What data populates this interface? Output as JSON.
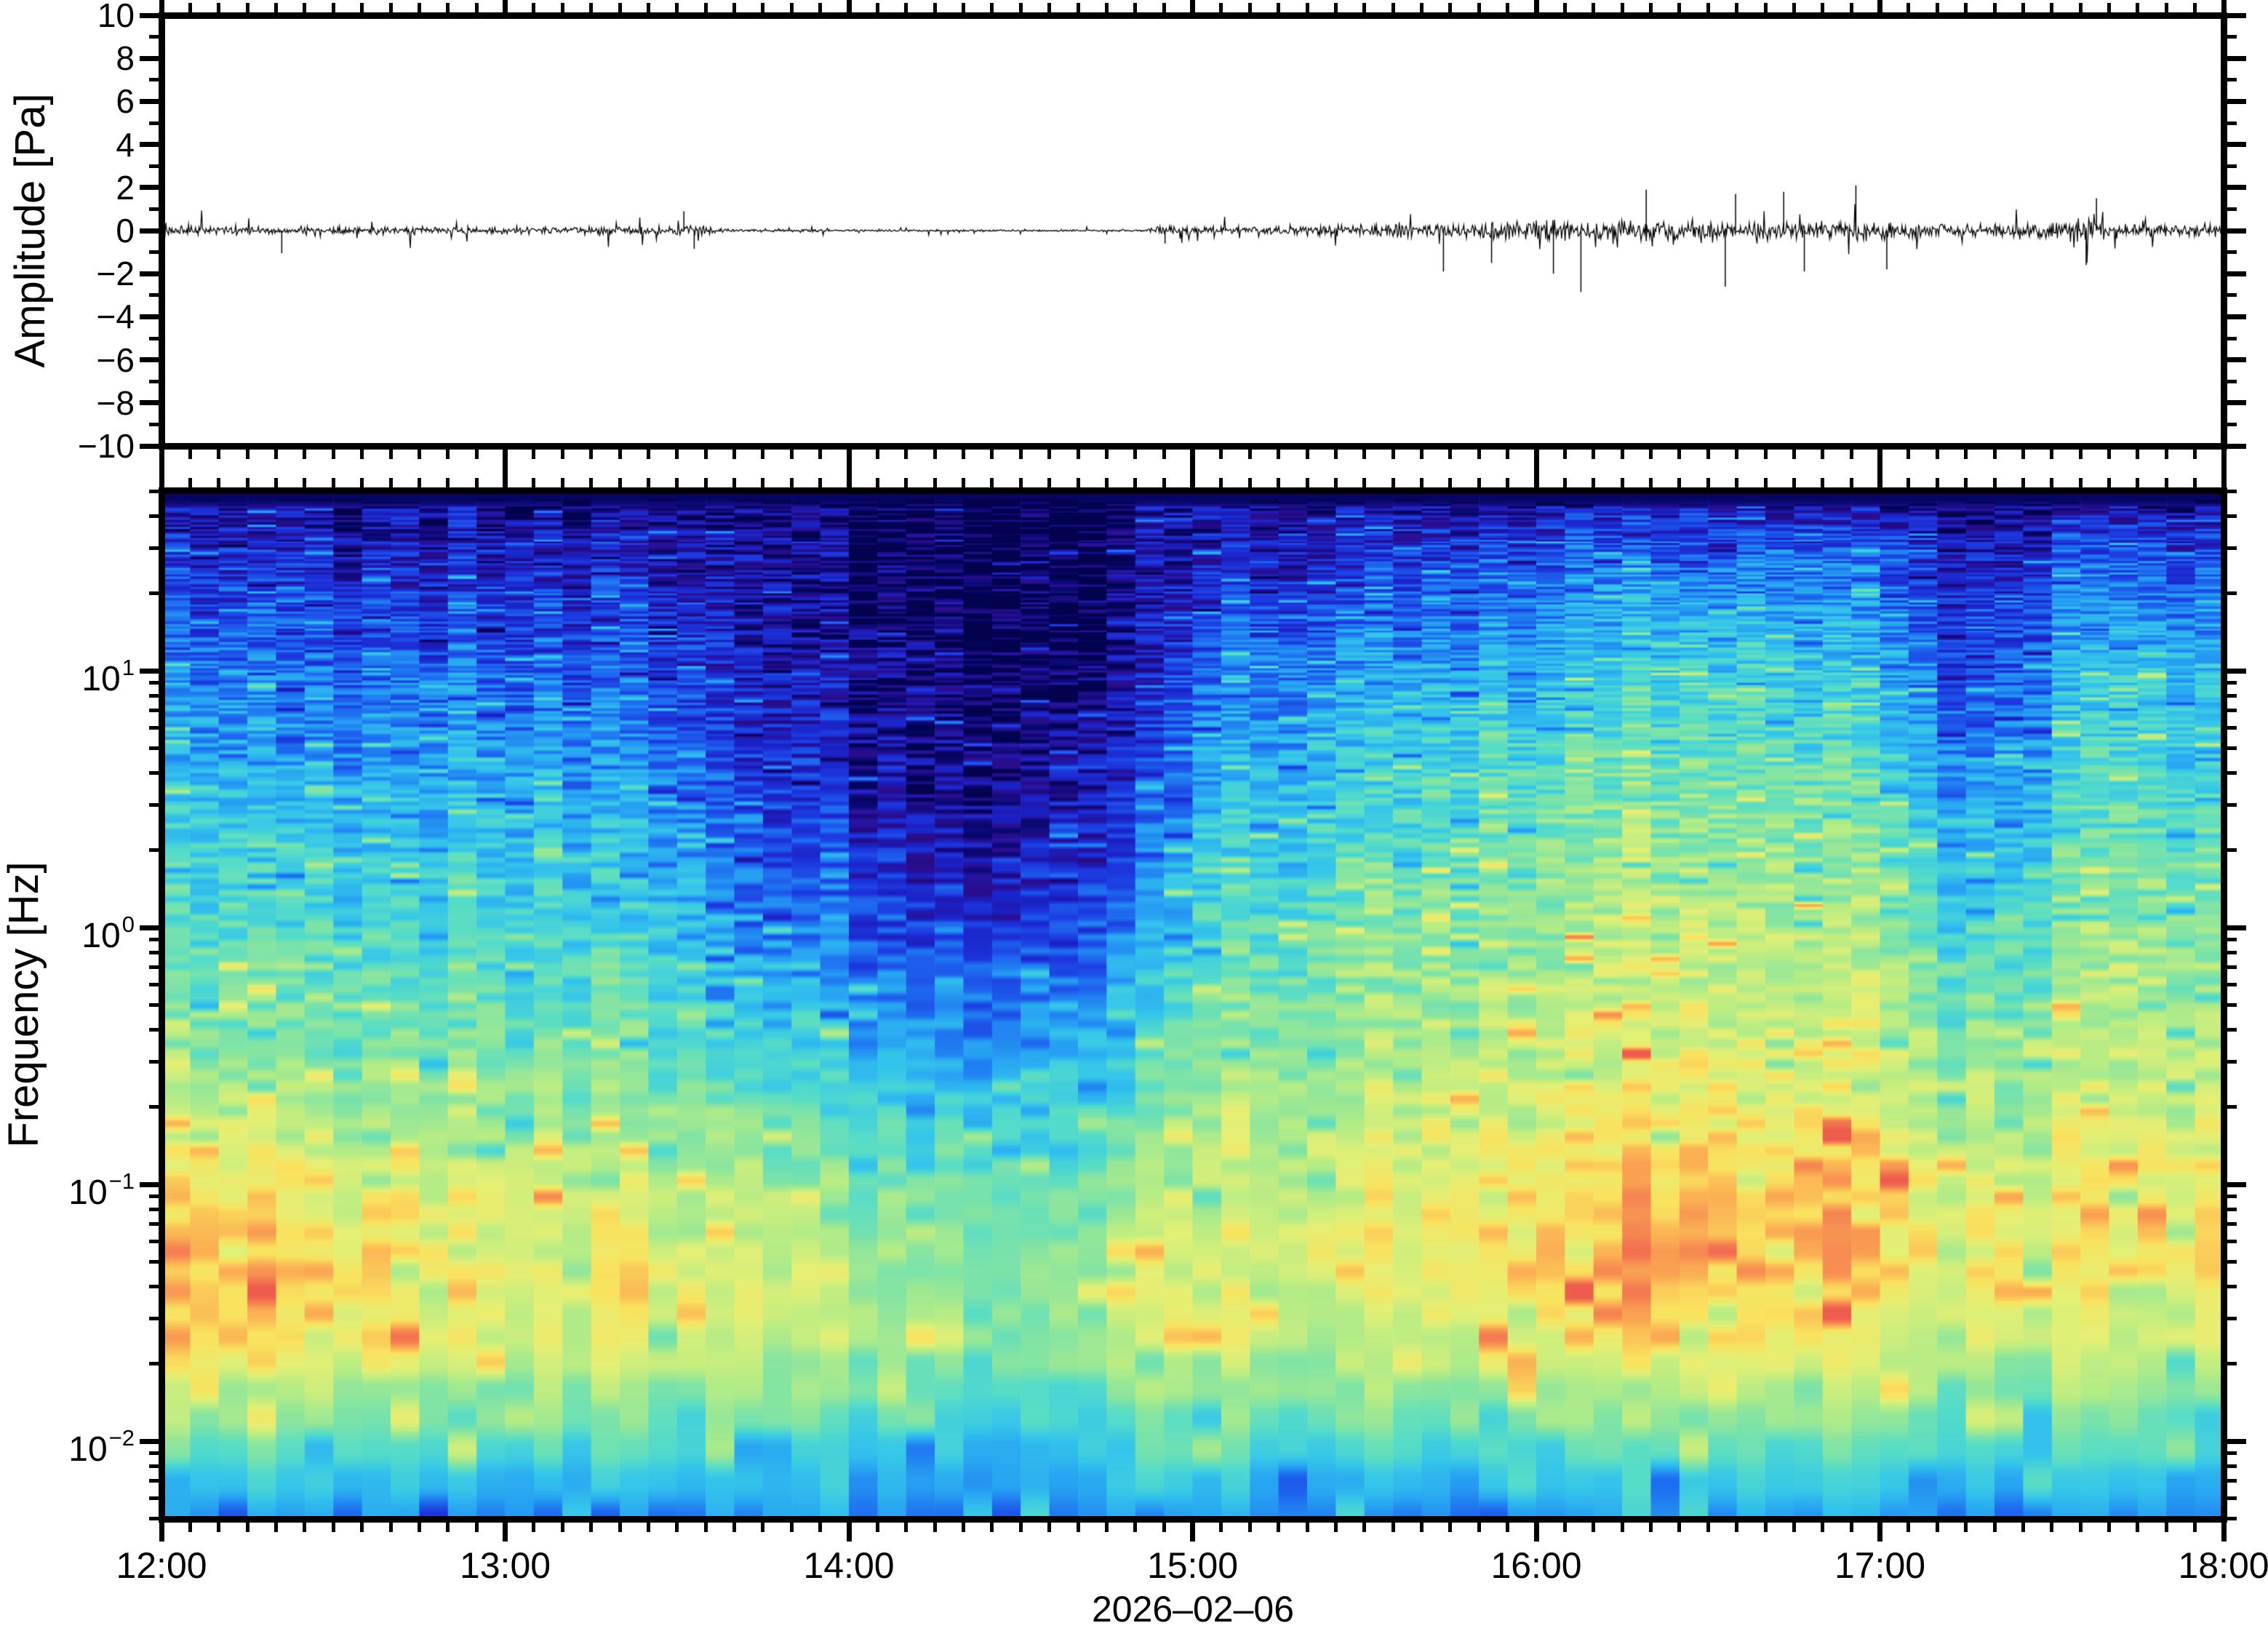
{
  "figure": {
    "background": "#ffffff",
    "frame_color": "#000000",
    "date_label": "2026–02–06"
  },
  "axes_text": {
    "amplitude_title": "Amplitude [Pa]",
    "frequency_title": "Frequency [Hz]",
    "amplitude_tick_labels": [
      "10",
      "8",
      "6",
      "4",
      "2",
      "0",
      "−2",
      "−4",
      "−6",
      "−8",
      "−10"
    ],
    "amplitude_tick_values": [
      10,
      8,
      6,
      4,
      2,
      0,
      -2,
      -4,
      -6,
      -8,
      -10
    ],
    "frequency_decade_base": "10",
    "frequency_decade_exponents": [
      "1",
      "0",
      "−1",
      "−2"
    ],
    "frequency_decade_values": [
      1,
      0,
      -1,
      -2
    ],
    "time_tick_labels": [
      "12:00",
      "13:00",
      "14:00",
      "15:00",
      "16:00",
      "17:00",
      "18:00"
    ]
  },
  "chart_data": [
    {
      "type": "line",
      "panel": "waveform",
      "ylabel": "Amplitude [Pa]",
      "ylim": [
        -10,
        10
      ],
      "ytick_step_major": 2,
      "ytick_step_minor": 1,
      "x_range_hours": [
        0,
        6
      ],
      "x_start_label": "12:00",
      "x_end_label": "18:00",
      "minor_tick_minutes": 5,
      "line_color": "#000000",
      "envelope": {
        "t_hours": [
          0,
          0.15,
          0.3,
          0.5,
          0.75,
          1.0,
          1.17,
          1.35,
          1.5,
          1.58,
          1.63,
          1.7,
          2.0,
          2.3,
          2.6,
          2.85,
          2.9,
          2.95,
          3.0,
          3.25,
          3.5,
          3.75,
          4.0,
          4.25,
          4.5,
          4.75,
          5.0,
          5.15,
          5.3,
          5.45,
          5.58,
          5.7,
          5.85,
          6.0
        ],
        "amplitude_pa": [
          0.46,
          0.4,
          0.37,
          0.33,
          0.34,
          0.33,
          0.38,
          0.34,
          0.43,
          0.45,
          0.2,
          0.11,
          0.11,
          0.085,
          0.08,
          0.09,
          0.3,
          0.35,
          0.3,
          0.45,
          0.55,
          0.68,
          0.82,
          0.92,
          0.93,
          0.88,
          0.82,
          0.62,
          0.52,
          0.66,
          0.86,
          0.78,
          0.6,
          0.52
        ]
      },
      "spikes_pa": [
        [
          0.35,
          -1.05
        ],
        [
          1.52,
          0.9
        ],
        [
          1.55,
          -0.85
        ],
        [
          2.92,
          -0.6
        ],
        [
          3.73,
          -1.9
        ],
        [
          3.87,
          -1.5
        ],
        [
          4.05,
          -2.0
        ],
        [
          4.13,
          -2.85
        ],
        [
          4.32,
          1.9
        ],
        [
          4.55,
          -2.6
        ],
        [
          4.58,
          1.7
        ],
        [
          4.72,
          1.8
        ],
        [
          4.78,
          -1.9
        ],
        [
          4.93,
          2.1
        ],
        [
          5.02,
          -1.8
        ],
        [
          5.6,
          -1.6
        ],
        [
          5.63,
          1.5
        ]
      ]
    },
    {
      "type": "heatmap",
      "panel": "spectrogram",
      "ylabel": "Frequency [Hz]",
      "y_log_scale": true,
      "freq_range_hz": [
        0.005,
        50.4
      ],
      "log10_freq_range": [
        -2.303,
        1.703
      ],
      "x_range_hours": [
        0,
        6
      ],
      "date_label": "2026–02–06",
      "column_minutes": 5,
      "time_nodes_hours": [
        0,
        0.5,
        1.0,
        1.5,
        1.67,
        2.0,
        2.33,
        2.67,
        2.92,
        3.0,
        3.5,
        4.0,
        4.5,
        5.0,
        5.25,
        5.42,
        5.67,
        6.0
      ],
      "log10_freq_nodes": [
        1.72,
        1.45,
        1.0,
        0.5,
        0.0,
        -0.5,
        -1.0,
        -1.3,
        -1.6,
        -1.9,
        -2.1,
        -2.3
      ],
      "power_grid": [
        [
          0.06,
          0.06,
          0.06,
          0.05,
          0.04,
          0.04,
          0.03,
          0.03,
          0.04,
          0.05,
          0.06,
          0.07,
          0.07,
          0.07,
          0.05,
          0.05,
          0.07,
          0.06
        ],
        [
          0.16,
          0.14,
          0.15,
          0.11,
          0.08,
          0.06,
          0.05,
          0.05,
          0.06,
          0.11,
          0.2,
          0.25,
          0.27,
          0.25,
          0.14,
          0.18,
          0.28,
          0.22
        ],
        [
          0.3,
          0.27,
          0.29,
          0.21,
          0.13,
          0.1,
          0.07,
          0.08,
          0.1,
          0.25,
          0.37,
          0.43,
          0.48,
          0.42,
          0.24,
          0.3,
          0.45,
          0.4
        ],
        [
          0.42,
          0.4,
          0.42,
          0.33,
          0.2,
          0.16,
          0.12,
          0.14,
          0.18,
          0.38,
          0.5,
          0.56,
          0.6,
          0.55,
          0.35,
          0.42,
          0.56,
          0.5
        ],
        [
          0.52,
          0.5,
          0.52,
          0.44,
          0.32,
          0.27,
          0.23,
          0.27,
          0.32,
          0.48,
          0.6,
          0.65,
          0.68,
          0.64,
          0.5,
          0.55,
          0.66,
          0.6
        ],
        [
          0.6,
          0.6,
          0.6,
          0.54,
          0.47,
          0.43,
          0.4,
          0.44,
          0.5,
          0.58,
          0.67,
          0.72,
          0.75,
          0.72,
          0.62,
          0.64,
          0.72,
          0.68
        ],
        [
          0.76,
          0.78,
          0.72,
          0.7,
          0.66,
          0.62,
          0.6,
          0.62,
          0.65,
          0.68,
          0.75,
          0.8,
          0.85,
          0.82,
          0.74,
          0.74,
          0.8,
          0.78
        ],
        [
          0.85,
          0.84,
          0.78,
          0.75,
          0.72,
          0.68,
          0.65,
          0.66,
          0.68,
          0.7,
          0.78,
          0.85,
          0.88,
          0.85,
          0.79,
          0.78,
          0.82,
          0.8
        ],
        [
          0.8,
          0.82,
          0.75,
          0.72,
          0.7,
          0.68,
          0.65,
          0.66,
          0.67,
          0.68,
          0.72,
          0.78,
          0.8,
          0.78,
          0.72,
          0.72,
          0.75,
          0.72
        ],
        [
          0.62,
          0.63,
          0.6,
          0.58,
          0.57,
          0.55,
          0.54,
          0.55,
          0.55,
          0.55,
          0.58,
          0.6,
          0.62,
          0.6,
          0.58,
          0.58,
          0.6,
          0.58
        ],
        [
          0.46,
          0.47,
          0.45,
          0.44,
          0.44,
          0.43,
          0.43,
          0.44,
          0.44,
          0.44,
          0.45,
          0.46,
          0.47,
          0.46,
          0.45,
          0.45,
          0.46,
          0.45
        ],
        [
          0.36,
          0.34,
          0.35,
          0.32,
          0.33,
          0.35,
          0.34,
          0.33,
          0.34,
          0.34,
          0.35,
          0.36,
          0.35,
          0.36,
          0.33,
          0.32,
          0.35,
          0.34
        ]
      ],
      "colormap_name": "jet-like",
      "colormap_stops": [
        [
          0.0,
          "#03024f"
        ],
        [
          0.045,
          "#0d0b7e"
        ],
        [
          0.09,
          "#2c0d8c"
        ],
        [
          0.13,
          "#1b1fc0"
        ],
        [
          0.2,
          "#1c39e0"
        ],
        [
          0.28,
          "#1e6cf0"
        ],
        [
          0.36,
          "#27a3f2"
        ],
        [
          0.44,
          "#35c6ea"
        ],
        [
          0.52,
          "#55dcc8"
        ],
        [
          0.6,
          "#84e4a2"
        ],
        [
          0.68,
          "#b6ec85"
        ],
        [
          0.76,
          "#e4ef74"
        ],
        [
          0.82,
          "#f9e25e"
        ],
        [
          0.88,
          "#fbb253"
        ],
        [
          0.94,
          "#f58251"
        ],
        [
          1.0,
          "#ee5c4d"
        ]
      ]
    }
  ]
}
